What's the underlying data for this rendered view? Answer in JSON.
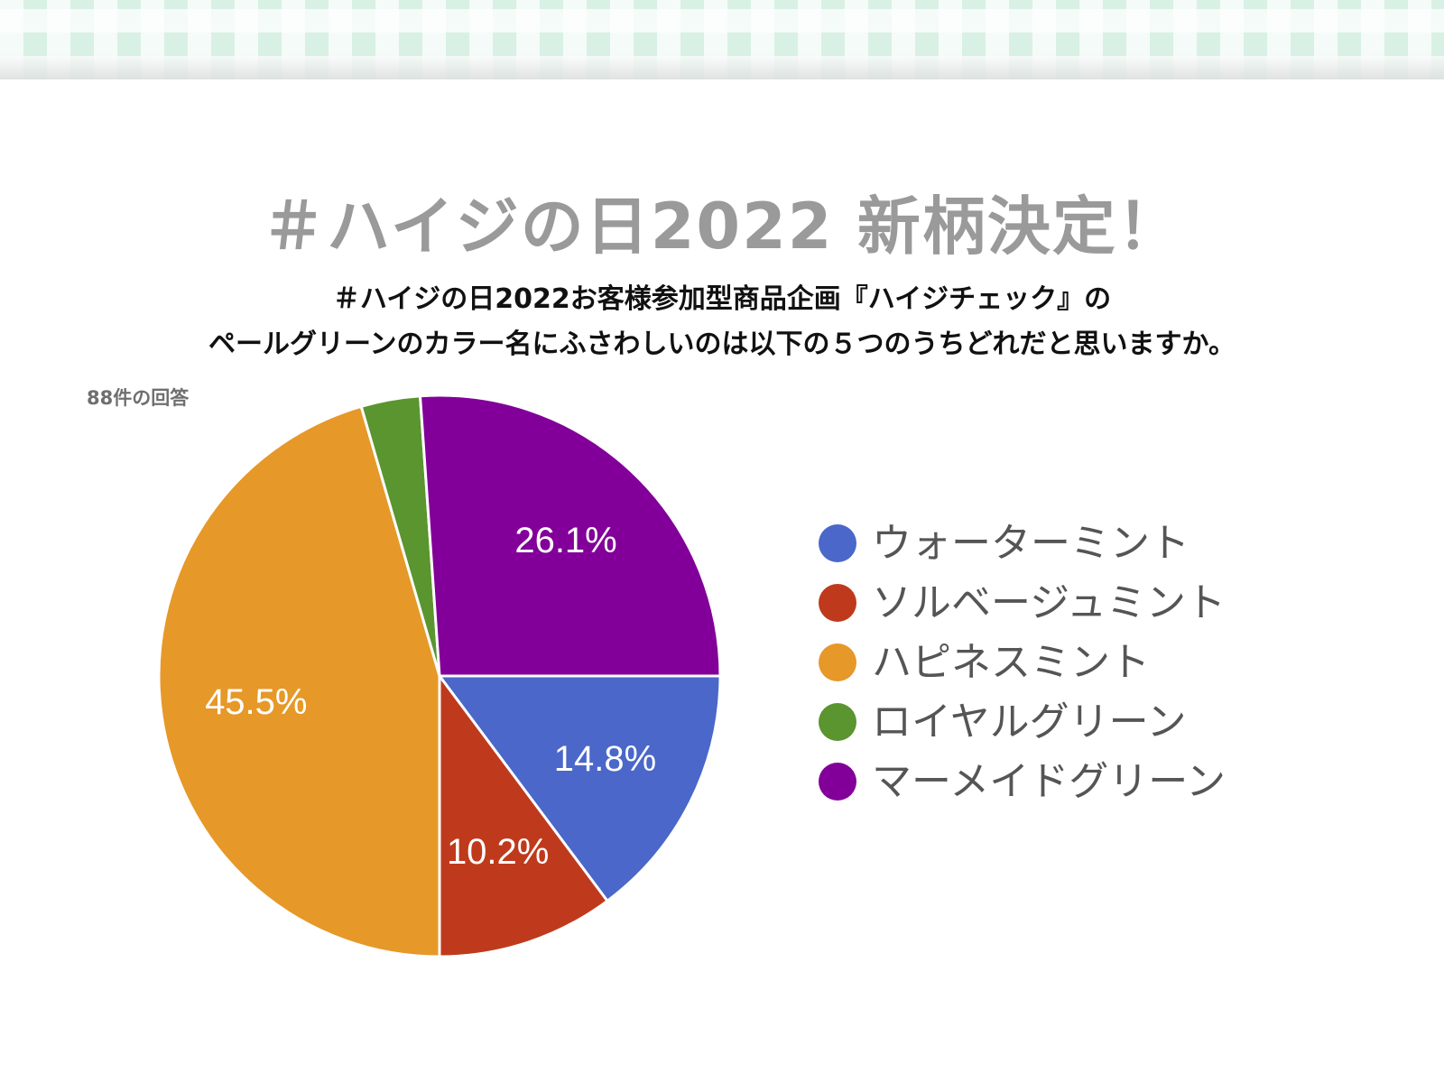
{
  "header": {
    "title": "＃ハイジの日2022 新柄決定！",
    "question_line1": "＃ハイジの日2022お客様参加型商品企画『ハイジチェック』の",
    "question_line2": "ペールグリーンのカラー名にふさわしいのは以下の５つのうちどれだと思いますか。",
    "response_count": "88件の回答"
  },
  "chart_data": {
    "type": "pie",
    "total_responses": 88,
    "slices": [
      {
        "name": "ウォーターミント",
        "value": 14.8,
        "label": "14.8%",
        "color": "#4a67c9"
      },
      {
        "name": "ソルベージュミント",
        "value": 10.2,
        "label": "10.2%",
        "color": "#bf3a1c"
      },
      {
        "name": "ハピネスミント",
        "value": 45.5,
        "label": "45.5%",
        "color": "#e69828"
      },
      {
        "name": "ロイヤルグリーン",
        "value": 3.4,
        "label": "",
        "color": "#5a9530"
      },
      {
        "name": "マーメイドグリーン",
        "value": 26.1,
        "label": "26.1%",
        "color": "#820099"
      }
    ],
    "legend_position": "right"
  }
}
